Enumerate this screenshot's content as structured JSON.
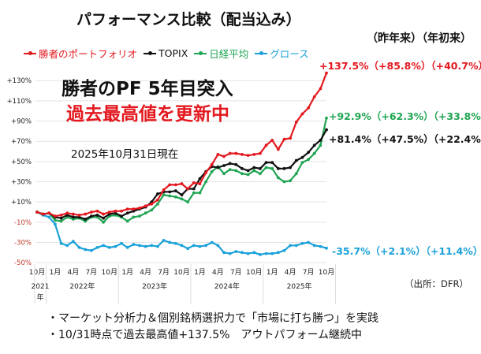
{
  "chart_data": {
    "type": "line",
    "title": "パフォーマンス比較（配当込み）",
    "ylim": [
      -50,
      130
    ],
    "yticks": [
      "+130%",
      "+110%",
      "+90%",
      "+70%",
      "+50%",
      "+30%",
      "+10%",
      "-10%",
      "-30%",
      "-50%"
    ],
    "ytick_values": [
      130,
      110,
      90,
      70,
      50,
      30,
      10,
      -10,
      -30,
      -50
    ],
    "x_range": [
      "2021-10",
      "2025-10"
    ],
    "x_month_labels": [
      "10月",
      "1月",
      "4月",
      "7月",
      "10月",
      "1月",
      "4月",
      "7月",
      "10月",
      "1月",
      "4月",
      "7月",
      "10月",
      "1月",
      "4月",
      "7月",
      "10月"
    ],
    "x_year_labels": [
      "2021年",
      "2022年",
      "2023年",
      "2024年",
      "2025年"
    ],
    "grid": "horizontal",
    "legend_placement": "top",
    "series": [
      {
        "name": "勝者のポートフォリオ",
        "color": "#e3191f",
        "values": [
          0,
          -2,
          -1,
          -4,
          -3,
          -1,
          -2,
          -3,
          -2,
          0,
          1,
          -2,
          0,
          1,
          1,
          3,
          3,
          4,
          6,
          8,
          12,
          22,
          27,
          27,
          28,
          23,
          29,
          28,
          39,
          47,
          57,
          55,
          58,
          58,
          57,
          56,
          57,
          58,
          66,
          71,
          62,
          72,
          73,
          89,
          97,
          103,
          114,
          122,
          137.5
        ]
      },
      {
        "name": "TOPIX",
        "color": "#111111",
        "values": [
          0,
          -2,
          -1,
          -5,
          -6,
          -3,
          -5,
          -5,
          -7,
          -4,
          -3,
          -6,
          -2,
          -1,
          -4,
          -1,
          1,
          3,
          5,
          10,
          18,
          20,
          20,
          21,
          17,
          23,
          23,
          33,
          40,
          45,
          44,
          46,
          48,
          47,
          43,
          41,
          44,
          43,
          49,
          49,
          43,
          43,
          44,
          51,
          54,
          59,
          66,
          71,
          81.4
        ]
      },
      {
        "name": "日経平均",
        "color": "#1fa552",
        "values": [
          0,
          -2,
          -1,
          -8,
          -9,
          -5,
          -7,
          -6,
          -9,
          -5,
          -5,
          -10,
          -4,
          -3,
          -5,
          -9,
          -5,
          -4,
          -1,
          2,
          8,
          17,
          16,
          15,
          13,
          10,
          19,
          19,
          30,
          40,
          45,
          38,
          42,
          41,
          38,
          37,
          41,
          38,
          44,
          43,
          34,
          30,
          31,
          38,
          49,
          52,
          58,
          66,
          92.9
        ]
      },
      {
        "name": "グロース",
        "color": "#1ba1d9",
        "values": [
          0,
          -3,
          -5,
          -12,
          -31,
          -33,
          -29,
          -35,
          -37,
          -38,
          -35,
          -33,
          -35,
          -34,
          -31,
          -35,
          -32,
          -33,
          -34,
          -33,
          -34,
          -28,
          -30,
          -31,
          -33,
          -36,
          -33,
          -34,
          -33,
          -30,
          -33,
          -40,
          -41,
          -39,
          -40,
          -41,
          -40,
          -42,
          -41,
          -41,
          -40,
          -38,
          -33,
          -33,
          -31,
          -30,
          -33,
          -34,
          -35.7
        ]
      }
    ],
    "annotations": {
      "column_headers": "（昨年来）（年初来）",
      "portfolio": "+137.5%（+85.8%）（+40.7%）",
      "nikkei": "+92.9%（+62.3%）（+33.8%）",
      "topix": "+81.4%（+47.5%）（+22.4%）",
      "growth": "-35.7%（+2.1%）（+11.4%）"
    }
  },
  "headline": {
    "line1": "勝者のPF 5年目突入",
    "line2": "過去最高値を更新中"
  },
  "as_of": "2025年10月31日現在",
  "source": "（出所：DFR）",
  "notes": [
    "・マーケット分析力＆個別銘柄選択力で「市場に打ち勝つ」を実践",
    "・10/31時点で過去最高値+137.5%　アウトパフォーム継続中"
  ]
}
